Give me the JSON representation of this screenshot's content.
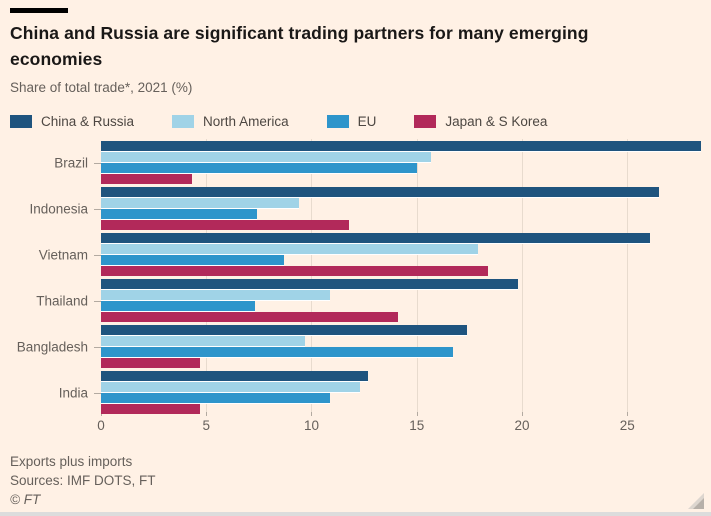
{
  "header": {
    "title": "China and Russia are significant trading partners for many emerging economies",
    "subtitle": "Share of total trade*, 2021 (%)"
  },
  "legend": [
    {
      "label": "China & Russia",
      "color": "#1f547e"
    },
    {
      "label": "North America",
      "color": "#a0d3e7"
    },
    {
      "label": "EU",
      "color": "#2e95cb"
    },
    {
      "label": "Japan & S Korea",
      "color": "#b2295a"
    }
  ],
  "chart_data": {
    "type": "bar",
    "orientation": "horizontal",
    "title": "China and Russia are significant trading partners for many emerging economies",
    "subtitle": "Share of total trade*, 2021 (%)",
    "categories": [
      "Brazil",
      "Indonesia",
      "Vietnam",
      "Thailand",
      "Bangladesh",
      "India"
    ],
    "series": [
      {
        "name": "China & Russia",
        "color": "#1f547e",
        "values": [
          28.5,
          26.5,
          26.1,
          19.8,
          17.4,
          12.7
        ]
      },
      {
        "name": "North America",
        "color": "#a0d3e7",
        "values": [
          15.7,
          9.4,
          17.9,
          10.9,
          9.7,
          12.3
        ]
      },
      {
        "name": "EU",
        "color": "#2e95cb",
        "values": [
          15.0,
          7.4,
          8.7,
          7.3,
          16.7,
          10.9
        ]
      },
      {
        "name": "Japan & S Korea",
        "color": "#b2295a",
        "values": [
          4.3,
          11.8,
          18.4,
          14.1,
          4.7,
          4.7
        ]
      }
    ],
    "x_ticks": [
      0,
      5,
      10,
      15,
      20,
      25
    ],
    "xlim": [
      0,
      28.6
    ],
    "grid": "vertical",
    "legend_position": "top"
  },
  "footer": {
    "note": "Exports plus imports",
    "sources": "Sources: IMF DOTS, FT",
    "copyright": "© FT"
  },
  "colors": {
    "background": "#fff1e5",
    "text": "#1a1817",
    "muted_text": "#66605b",
    "gridline": "#e8dbce",
    "accent_bar": "#000000"
  }
}
